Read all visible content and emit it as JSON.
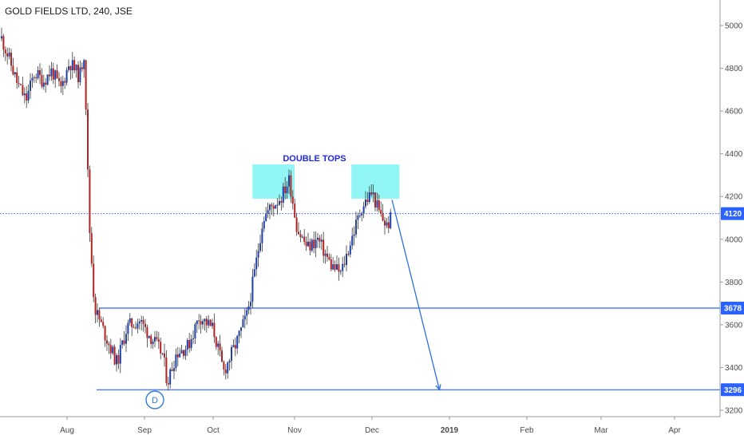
{
  "chart_data": {
    "type": "candlestick",
    "title": "GOLD FIELDS LTD, 240, JSE",
    "x_tick_labels": [
      "Aug",
      "Sep",
      "Oct",
      "Nov",
      "Dec",
      "2019",
      "Feb",
      "Mar",
      "Apr"
    ],
    "y_tick_labels": [
      "5000",
      "4800",
      "4600",
      "4400",
      "4200",
      "4000",
      "3800",
      "3600",
      "3400",
      "3200"
    ],
    "ylim": [
      3200,
      5100
    ],
    "grid": false,
    "colors": {
      "up": "#1f3fa8",
      "down": "#b22222",
      "level_line": "#2962ff",
      "zone": "#7ff5f5",
      "annotation": "#2229d6"
    },
    "price_path": [
      [
        "2018-07-01",
        4960
      ],
      [
        "2018-07-05",
        4850
      ],
      [
        "2018-07-09",
        4730
      ],
      [
        "2018-07-13",
        4650
      ],
      [
        "2018-07-17",
        4780
      ],
      [
        "2018-07-21",
        4740
      ],
      [
        "2018-07-25",
        4790
      ],
      [
        "2018-07-29",
        4700
      ],
      [
        "2018-08-02",
        4830
      ],
      [
        "2018-08-06",
        4760
      ],
      [
        "2018-08-08",
        4880
      ],
      [
        "2018-08-09",
        4420
      ],
      [
        "2018-08-10",
        4050
      ],
      [
        "2018-08-12",
        3680
      ],
      [
        "2018-08-16",
        3560
      ],
      [
        "2018-08-21",
        3420
      ],
      [
        "2018-08-25",
        3590
      ],
      [
        "2018-08-30",
        3620
      ],
      [
        "2018-09-04",
        3540
      ],
      [
        "2018-09-09",
        3460
      ],
      [
        "2018-09-11",
        3330
      ],
      [
        "2018-09-15",
        3470
      ],
      [
        "2018-09-20",
        3500
      ],
      [
        "2018-09-25",
        3640
      ],
      [
        "2018-10-01",
        3580
      ],
      [
        "2018-10-05",
        3380
      ],
      [
        "2018-10-10",
        3520
      ],
      [
        "2018-10-14",
        3650
      ],
      [
        "2018-10-17",
        3860
      ],
      [
        "2018-10-20",
        4100
      ],
      [
        "2018-10-23",
        4150
      ],
      [
        "2018-10-27",
        4200
      ],
      [
        "2018-10-30",
        4280
      ],
      [
        "2018-11-02",
        4050
      ],
      [
        "2018-11-06",
        3960
      ],
      [
        "2018-11-10",
        4000
      ],
      [
        "2018-11-15",
        3880
      ],
      [
        "2018-11-19",
        3840
      ],
      [
        "2018-11-23",
        4000
      ],
      [
        "2018-11-27",
        4150
      ],
      [
        "2018-12-01",
        4220
      ],
      [
        "2018-12-04",
        4120
      ],
      [
        "2018-12-07",
        4060
      ],
      [
        "2018-12-09",
        4110
      ]
    ],
    "levels": [
      {
        "label": "4120",
        "value": 4120,
        "style": "dotted"
      },
      {
        "label": "3678",
        "value": 3678,
        "style": "solid"
      },
      {
        "label": "3296",
        "value": 3296,
        "style": "solid"
      }
    ],
    "zones": [
      {
        "from": "2018-10-16",
        "to": "2018-11-01",
        "low": 4190,
        "high": 4350
      },
      {
        "from": "2018-11-23",
        "to": "2018-12-12",
        "low": 4190,
        "high": 4350
      }
    ],
    "annotation_text": "DOUBLE TOPS",
    "forecast_arrow": {
      "from": [
        "2018-12-09",
        4185
      ],
      "to": [
        "2018-12-28",
        3296
      ]
    },
    "marker_label": "D"
  }
}
